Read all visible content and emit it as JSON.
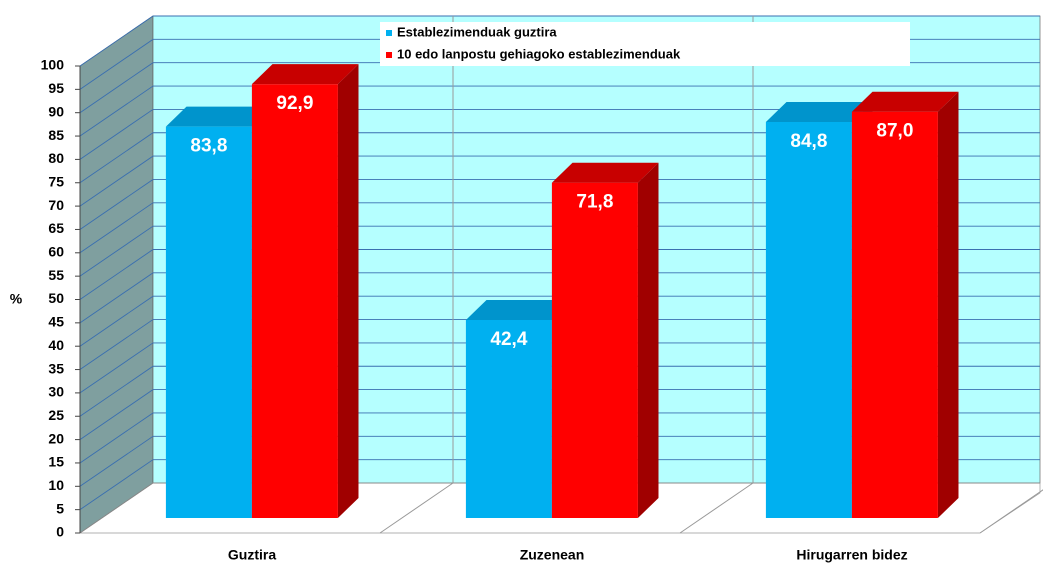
{
  "chart_data": {
    "type": "bar3d",
    "y_label": "%",
    "categories": [
      "Guztira",
      "Zuzenean",
      "Hirugarren bidez"
    ],
    "series": [
      {
        "name": "Establezimenduak guztira",
        "color": "#00b0f0",
        "values": [
          83.8,
          42.4,
          84.8
        ],
        "value_labels": [
          "83,8",
          "42,4",
          "84,8"
        ]
      },
      {
        "name": "10 edo lanpostu gehiagoko establezimenduak",
        "color": "#ff0000",
        "values": [
          92.9,
          71.8,
          87.0
        ],
        "value_labels": [
          "92,9",
          "71,8",
          "87,0"
        ]
      }
    ],
    "ylim": [
      0,
      100
    ],
    "yticks": [
      0,
      5,
      10,
      15,
      20,
      25,
      30,
      35,
      40,
      45,
      50,
      55,
      60,
      65,
      70,
      75,
      80,
      85,
      90,
      95,
      100
    ],
    "grid": true,
    "legend": "top"
  }
}
